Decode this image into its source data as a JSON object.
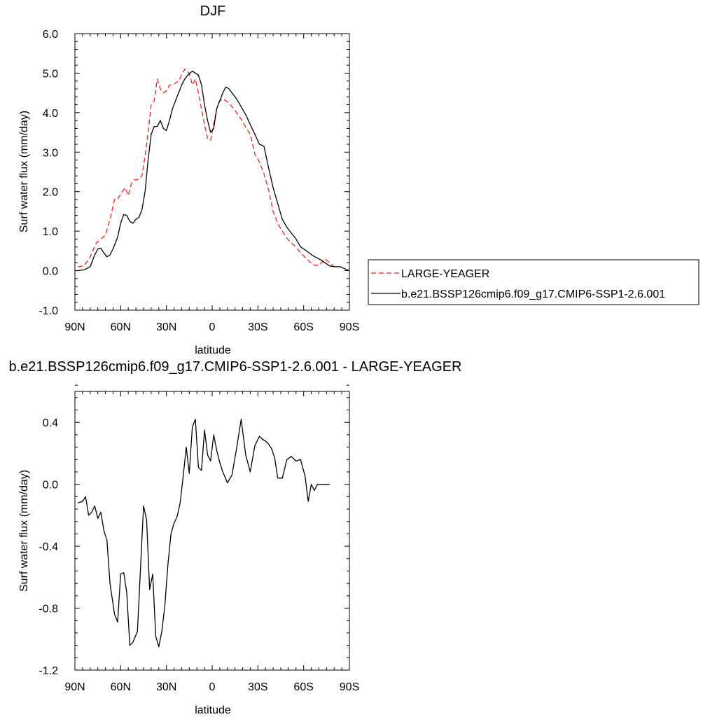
{
  "chart_data": [
    {
      "type": "line",
      "title": "DJF",
      "xlabel": "latitude",
      "ylabel": "Surf water flux (mm/day)",
      "xlim": [
        90,
        -90
      ],
      "ylim": [
        -1.0,
        6.0
      ],
      "xticks": [
        90,
        60,
        30,
        0,
        -30,
        -60,
        -90
      ],
      "xtick_labels": [
        "90N",
        "60N",
        "30N",
        "0",
        "30S",
        "60S",
        "90S"
      ],
      "yticks": [
        -1.0,
        0.0,
        1.0,
        2.0,
        3.0,
        4.0,
        5.0,
        6.0
      ],
      "ytick_labels": [
        "-1.0",
        "0.0",
        "1.0",
        "2.0",
        "3.0",
        "4.0",
        "5.0",
        "6.0"
      ],
      "grid": false,
      "legend_position": "right",
      "series": [
        {
          "name": "LARGE-YEAGER",
          "color": "#e8231f",
          "dash": "dashed",
          "x": [
            88,
            84,
            80,
            76,
            73,
            70,
            67,
            64,
            62,
            59,
            57,
            55,
            53,
            51,
            49,
            46,
            44,
            42,
            40,
            38,
            36,
            34,
            32,
            30,
            28,
            26,
            24,
            22,
            20,
            18,
            15,
            13,
            11,
            9,
            7,
            5,
            3,
            1,
            -1,
            -3,
            -5,
            -7,
            -9,
            -11,
            -13,
            -15,
            -18,
            -21,
            -25,
            -28,
            -31,
            -34,
            -37,
            -40,
            -43,
            -46,
            -49,
            -52,
            -55,
            -58,
            -62,
            -66,
            -70,
            -74,
            -77,
            -80
          ],
          "y": [
            0.1,
            0.12,
            0.35,
            0.7,
            0.8,
            0.9,
            1.3,
            1.8,
            1.8,
            2.0,
            2.1,
            1.9,
            2.2,
            2.3,
            2.3,
            2.4,
            2.9,
            3.5,
            4.2,
            4.3,
            4.85,
            4.6,
            4.5,
            4.55,
            4.7,
            4.7,
            4.75,
            4.8,
            4.95,
            5.1,
            5.0,
            4.7,
            4.85,
            4.5,
            4.1,
            3.7,
            3.35,
            3.3,
            3.7,
            4.1,
            4.3,
            4.35,
            4.3,
            4.25,
            4.15,
            4.05,
            3.9,
            3.7,
            3.45,
            2.95,
            2.75,
            2.45,
            2.05,
            1.5,
            1.2,
            1.0,
            0.82,
            0.7,
            0.6,
            0.45,
            0.3,
            0.15,
            0.13,
            0.3,
            0.2,
            0.1
          ]
        },
        {
          "name": "b.e21.BSSP126cmip6.f09_g17.CMIP6-SSP1-2.6.001",
          "color": "#000000",
          "dash": "solid",
          "x": [
            89,
            84,
            80,
            77,
            75,
            73,
            71,
            69,
            67,
            65,
            62,
            60,
            58,
            56,
            54,
            52,
            50,
            48,
            46,
            44,
            42,
            40,
            38,
            36,
            34,
            32,
            30,
            28,
            26,
            24,
            22,
            20,
            18,
            16,
            13,
            11,
            9,
            7,
            5,
            3,
            1,
            -1,
            -3,
            -5,
            -7,
            -9,
            -11,
            -13,
            -16,
            -19,
            -22,
            -25,
            -28,
            -31,
            -34,
            -37,
            -40,
            -43,
            -46,
            -49,
            -52,
            -55,
            -58,
            -62,
            -66,
            -70,
            -74,
            -77,
            -80,
            -84,
            -87,
            -90
          ],
          "y": [
            0.0,
            0.02,
            0.1,
            0.4,
            0.55,
            0.57,
            0.45,
            0.35,
            0.4,
            0.55,
            0.85,
            1.2,
            1.42,
            1.4,
            1.25,
            1.2,
            1.3,
            1.35,
            1.55,
            2.0,
            2.8,
            3.45,
            3.65,
            3.65,
            3.8,
            3.6,
            3.55,
            3.8,
            4.1,
            4.3,
            4.5,
            4.7,
            4.85,
            4.95,
            5.05,
            5.0,
            4.95,
            4.7,
            4.2,
            3.8,
            3.5,
            3.6,
            4.1,
            4.3,
            4.5,
            4.65,
            4.6,
            4.5,
            4.35,
            4.15,
            3.95,
            3.7,
            3.45,
            3.2,
            3.15,
            2.6,
            2.1,
            1.7,
            1.3,
            1.1,
            0.95,
            0.8,
            0.6,
            0.5,
            0.38,
            0.3,
            0.2,
            0.12,
            0.1,
            0.1,
            0.05,
            0.0
          ]
        }
      ]
    },
    {
      "type": "line",
      "title": "b.e21.BSSP126cmip6.f09_g17.CMIP6-SSP1-2.6.001 - LARGE-YEAGER",
      "xlabel": "latitude",
      "ylabel": "Surf water flux (mm/day)",
      "xlim": [
        90,
        -90
      ],
      "ylim": [
        -1.2,
        0.6
      ],
      "xticks": [
        90,
        60,
        30,
        0,
        -30,
        -60,
        -90
      ],
      "xtick_labels": [
        "90N",
        "60N",
        "30N",
        "0",
        "30S",
        "60S",
        "90S"
      ],
      "yticks": [
        -1.2,
        -0.8,
        -0.4,
        0.0,
        0.4
      ],
      "ytick_labels": [
        "-1.2",
        "-0.8",
        "-0.4",
        "0.0",
        "0.4"
      ],
      "grid": false,
      "series": [
        {
          "name": "",
          "color": "#000000",
          "dash": "solid",
          "x": [
            88,
            85,
            83,
            81,
            79,
            77,
            75,
            73,
            71,
            69,
            67,
            64,
            62,
            60,
            58,
            56,
            54,
            52,
            49,
            47,
            45,
            43,
            41,
            39,
            37,
            35,
            33,
            31,
            29,
            27,
            25,
            23,
            21,
            19,
            17,
            15,
            13,
            11,
            9,
            7,
            5,
            3,
            1,
            -1,
            -3,
            -5,
            -7,
            -10,
            -13,
            -16,
            -19,
            -22,
            -25,
            -28,
            -31,
            -33,
            -35,
            -37,
            -39,
            -41,
            -43,
            -46,
            -49,
            -52,
            -55,
            -58,
            -61,
            -63,
            -65,
            -67,
            -69,
            -71,
            -73,
            -75,
            -77
          ],
          "y": [
            -0.12,
            -0.11,
            -0.08,
            -0.2,
            -0.18,
            -0.14,
            -0.22,
            -0.18,
            -0.3,
            -0.36,
            -0.64,
            -0.84,
            -0.89,
            -0.58,
            -0.57,
            -0.7,
            -1.04,
            -1.02,
            -0.95,
            -0.55,
            -0.14,
            -0.23,
            -0.68,
            -0.58,
            -0.98,
            -1.05,
            -0.95,
            -0.78,
            -0.52,
            -0.32,
            -0.25,
            -0.21,
            -0.12,
            0.05,
            0.24,
            0.07,
            0.37,
            0.42,
            0.11,
            0.09,
            0.35,
            0.19,
            0.15,
            0.32,
            0.22,
            0.14,
            0.08,
            0.01,
            0.06,
            0.23,
            0.42,
            0.19,
            0.08,
            0.25,
            0.31,
            0.29,
            0.28,
            0.26,
            0.23,
            0.17,
            0.04,
            0.04,
            0.16,
            0.18,
            0.15,
            0.16,
            0.05,
            -0.11,
            0.0,
            -0.04,
            0.0,
            0.0,
            0.0,
            0.0,
            0.0
          ]
        }
      ]
    }
  ]
}
